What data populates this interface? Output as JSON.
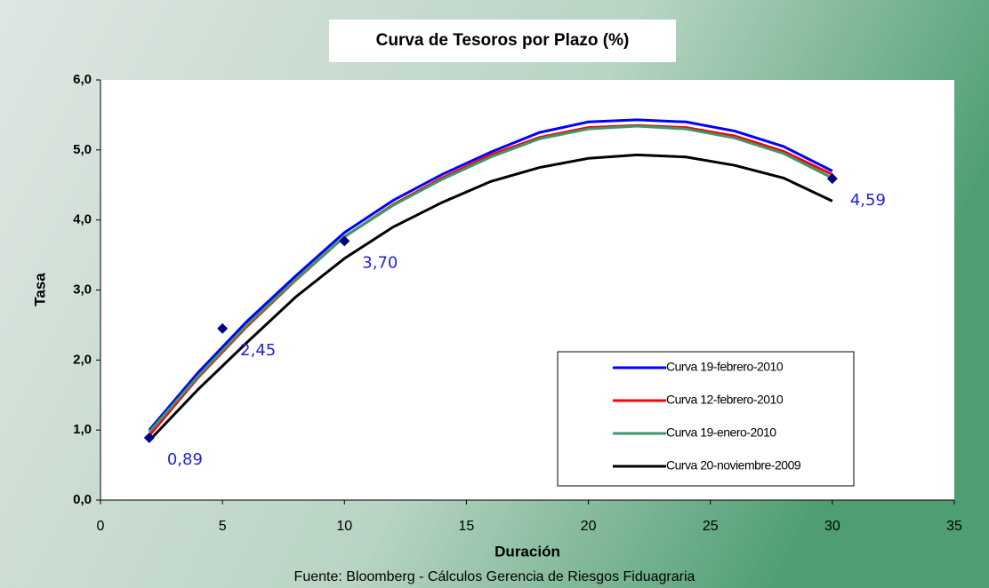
{
  "chart_data": {
    "type": "line",
    "title": "Curva de Tesoros por Plazo (%)",
    "xlabel": "Duración",
    "ylabel": "Tasa",
    "source": "Fuente: Bloomberg - Cálculos Gerencia de Riesgos Fiduagraria",
    "x": [
      2,
      4,
      6,
      8,
      10,
      12,
      14,
      16,
      18,
      20,
      22,
      24,
      26,
      28,
      30
    ],
    "series": [
      {
        "name": "Curva 19-febrero-2010",
        "color": "#0000ff",
        "values": [
          1.0,
          1.82,
          2.55,
          3.2,
          3.82,
          4.28,
          4.65,
          4.97,
          5.25,
          5.4,
          5.43,
          5.4,
          5.27,
          5.05,
          4.7
        ]
      },
      {
        "name": "Curva 12-febrero-2010",
        "color": "#ff0000",
        "values": [
          0.92,
          1.75,
          2.48,
          3.14,
          3.76,
          4.22,
          4.6,
          4.93,
          5.18,
          5.32,
          5.35,
          5.32,
          5.2,
          4.98,
          4.65
        ]
      },
      {
        "name": "Curva 19-enero-2010",
        "color": "#3a9a6a",
        "values": [
          0.97,
          1.77,
          2.5,
          3.15,
          3.76,
          4.21,
          4.58,
          4.9,
          5.16,
          5.3,
          5.34,
          5.3,
          5.17,
          4.95,
          4.6
        ]
      },
      {
        "name": "Curva 20-noviembre-2009",
        "color": "#000000",
        "values": [
          0.85,
          1.58,
          2.25,
          2.9,
          3.45,
          3.9,
          4.25,
          4.55,
          4.75,
          4.88,
          4.93,
          4.9,
          4.78,
          4.6,
          4.27
        ]
      }
    ],
    "points": {
      "color": "#000080",
      "x": [
        2,
        5,
        10,
        30
      ],
      "values": [
        0.89,
        2.45,
        3.7,
        4.59
      ],
      "value_labels": [
        "0,89",
        "2,45",
        "3,70",
        "4,59"
      ]
    },
    "xlim": [
      0,
      35
    ],
    "xticks": [
      0,
      5,
      10,
      15,
      20,
      25,
      30,
      35
    ],
    "ylim": [
      0,
      6
    ],
    "yticks": [
      {
        "value": 0,
        "label": "0,0"
      },
      {
        "value": 1,
        "label": "1,0"
      },
      {
        "value": 2,
        "label": "2,0"
      },
      {
        "value": 3,
        "label": "3,0"
      },
      {
        "value": 4,
        "label": "4,0"
      },
      {
        "value": 5,
        "label": "5,0"
      },
      {
        "value": 6,
        "label": "6,0"
      }
    ],
    "legend": "lower right"
  }
}
